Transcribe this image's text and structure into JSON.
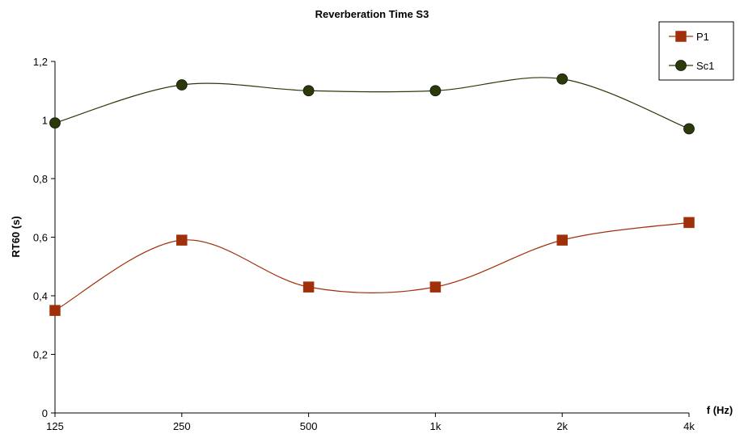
{
  "chart_data": {
    "type": "line",
    "title": "Reverberation Time S3",
    "xlabel": "f (Hz)",
    "ylabel": "RT60 (s)",
    "categories": [
      "125",
      "250",
      "500",
      "1k",
      "2k",
      "4k"
    ],
    "ylim": [
      0,
      1.2
    ],
    "yticks": [
      "0",
      "0,2",
      "0,4",
      "0,6",
      "0,8",
      "1",
      "1,2"
    ],
    "yticks_values": [
      0,
      0.2,
      0.4,
      0.6,
      0.8,
      1.0,
      1.2
    ],
    "grid": false,
    "legend_position": "top-right",
    "smooth": true,
    "series": [
      {
        "name": "P1",
        "marker": "square",
        "color": "#a0300a",
        "values": [
          0.35,
          0.59,
          0.43,
          0.43,
          0.59,
          0.65
        ]
      },
      {
        "name": "Sc1",
        "marker": "circle",
        "color": "#2b3a08",
        "values": [
          0.99,
          1.12,
          1.1,
          1.1,
          1.14,
          0.97
        ]
      }
    ]
  }
}
